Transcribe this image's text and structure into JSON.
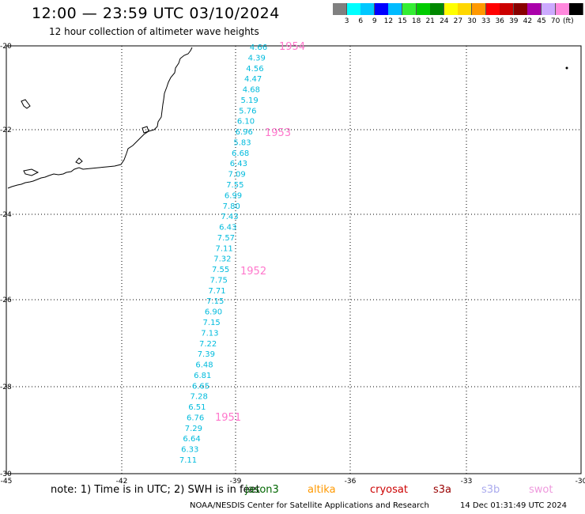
{
  "title": "12:00 — 23:59 UTC 03/10/2024",
  "subtitle": "12 hour collection of altimeter wave heights",
  "color_scale": {
    "unit": "(ft)",
    "bins": [
      {
        "label": "",
        "color": "#808080"
      },
      {
        "label": "3",
        "color": "#00ffff"
      },
      {
        "label": "6",
        "color": "#00c8ff"
      },
      {
        "label": "9",
        "color": "#0000ff"
      },
      {
        "label": "12",
        "color": "#00bbff"
      },
      {
        "label": "15",
        "color": "#33ee33"
      },
      {
        "label": "18",
        "color": "#00cc00"
      },
      {
        "label": "21",
        "color": "#008800"
      },
      {
        "label": "24",
        "color": "#ffff00"
      },
      {
        "label": "27",
        "color": "#ffd700"
      },
      {
        "label": "30",
        "color": "#ff9900"
      },
      {
        "label": "33",
        "color": "#ff0000"
      },
      {
        "label": "36",
        "color": "#cc0000"
      },
      {
        "label": "39",
        "color": "#880000"
      },
      {
        "label": "42",
        "color": "#aa00aa"
      },
      {
        "label": "45",
        "color": "#ccaaff"
      },
      {
        "label": "70",
        "color": "#ff88dd"
      },
      {
        "label": "",
        "color": "#000000"
      }
    ]
  },
  "axes": {
    "lon_labels": [
      "-45",
      "-42",
      "-39",
      "-36",
      "-33",
      "-30"
    ],
    "lat_labels": [
      "-20",
      "-22",
      "-24",
      "-26",
      "-28",
      "-30"
    ]
  },
  "wave_labels": {
    "color": "#00bbdd",
    "values": [
      "4.66",
      "4.39",
      "4.56",
      "4.47",
      "4.68",
      "5.19",
      "5.76",
      "6.10",
      "6.96",
      "5.83",
      "6.68",
      "6.43",
      "7.09",
      "7.55",
      "6.99",
      "7.80",
      "7.43",
      "6.43",
      "7.57",
      "7.11",
      "7.32",
      "7.55",
      "7.75",
      "7.71",
      "7.15",
      "6.90",
      "7.15",
      "7.13",
      "7.22",
      "7.39",
      "6.48",
      "6.81",
      "6.65",
      "7.28",
      "6.51",
      "6.76",
      "7.29",
      "6.64",
      "6.33",
      "7.11"
    ]
  },
  "time_labels": {
    "color": "#ff77cc",
    "values": [
      "1954",
      "1953",
      "1952",
      "1951"
    ]
  },
  "note": "note:  1) Time is in UTC;  2) SWH is in feet",
  "satellites": [
    {
      "name": "jason3",
      "color": "#006600"
    },
    {
      "name": "altika",
      "color": "#ff9900"
    },
    {
      "name": "cryosat",
      "color": "#cc0000"
    },
    {
      "name": "s3a",
      "color": "#990000"
    },
    {
      "name": "s3b",
      "color": "#aaaaee"
    },
    {
      "name": "swot",
      "color": "#ee99dd"
    }
  ],
  "credit": "NOAA/NESDIS Center for Satellite Applications and Research",
  "timestamp": "14 Dec 01:31:49 UTC 2024"
}
